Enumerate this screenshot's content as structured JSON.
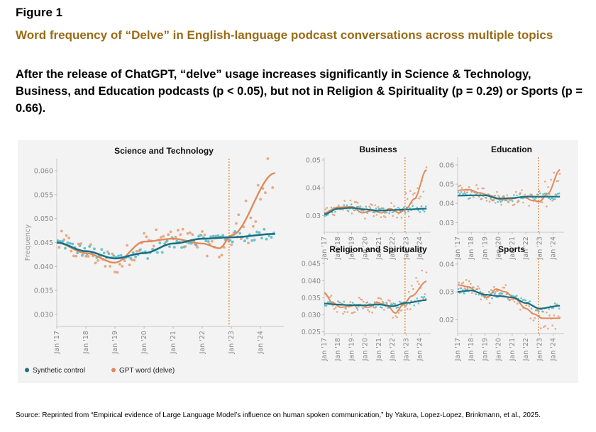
{
  "figure_label": "Figure 1",
  "title": "Word frequency of “Delve” in English-language podcast conversations across multiple topics",
  "subtitle": "After the release of ChatGPT, “delve” usage increases significantly in Science & Technology, Business, and Education podcasts (p < 0.05), but not in Religion & Spirituality (p = 0.29) or Sports (p = 0.66).",
  "source": "Source: Reprinted from “Empirical evidence of Large Language Model’s influence on human spoken communication,” by Yakura, Lopez-Lopez, Brinkmann, et al., 2025.",
  "colors": {
    "synthetic": "#1b6f80",
    "gpt": "#e08a5c",
    "synthetic_dot": "#4fb8c8",
    "gpt_dot": "#e59a70",
    "panel_bg": "#f3f3f3",
    "vline": "#e08a3c"
  },
  "chart_data": [
    {
      "type": "scatter",
      "title": "Science and Technology",
      "ylabel": "Frequency",
      "xlabel": "",
      "x_ticks": [
        "Jan '17",
        "Jan '18",
        "Jan '19",
        "Jan '20",
        "Jan '21",
        "Jan '22",
        "Jan '23",
        "Jan '24"
      ],
      "xlim": [
        2017,
        2024.8
      ],
      "ylim": [
        0.0275,
        0.0625
      ],
      "y_ticks": [
        0.03,
        0.035,
        0.04,
        0.045,
        0.05,
        0.055,
        0.06
      ],
      "y_tick_labels": [
        "0.030",
        "0.035",
        "0.040",
        "0.045",
        "0.050",
        "0.055",
        "0.060"
      ],
      "release_date": 2022.92,
      "series": [
        {
          "name": "Synthetic control",
          "x": [
            2017,
            2018,
            2019,
            2020,
            2021,
            2022,
            2023,
            2024.5
          ],
          "values": [
            0.045,
            0.0432,
            0.0417,
            0.0428,
            0.0448,
            0.0458,
            0.0461,
            0.0468
          ]
        },
        {
          "name": "GPT word (delve)",
          "x": [
            2017,
            2018,
            2019,
            2020,
            2021,
            2022,
            2022.6,
            2023,
            2024.5
          ],
          "values": [
            0.045,
            0.0428,
            0.0408,
            0.0452,
            0.0458,
            0.0448,
            0.0438,
            0.0465,
            0.0595
          ]
        }
      ],
      "legend": [
        "Synthetic control",
        "GPT word (delve)"
      ]
    },
    {
      "type": "scatter",
      "title": "Business",
      "x_ticks": [
        "Jan '17",
        "Jan '18",
        "Jan '19",
        "Jan '20",
        "Jan '21",
        "Jan '22",
        "Jan '23",
        "Jan '24"
      ],
      "xlim": [
        2017,
        2024.8
      ],
      "ylim": [
        0.024,
        0.051
      ],
      "y_ticks": [
        0.03,
        0.04,
        0.05
      ],
      "y_tick_labels": [
        "0.03",
        "0.04",
        "0.05"
      ],
      "release_date": 2022.92,
      "series": [
        {
          "name": "Synthetic control",
          "x": [
            2017,
            2018,
            2019,
            2020,
            2021,
            2022,
            2023,
            2024.5
          ],
          "values": [
            0.0305,
            0.0325,
            0.0328,
            0.0322,
            0.0318,
            0.032,
            0.0322,
            0.0325
          ]
        },
        {
          "name": "GPT word (delve)",
          "x": [
            2017,
            2018,
            2019,
            2019.8,
            2020.5,
            2021.2,
            2021.8,
            2022.5,
            2023,
            2023.6,
            2024.5
          ],
          "values": [
            0.031,
            0.033,
            0.0332,
            0.031,
            0.0318,
            0.031,
            0.0325,
            0.031,
            0.0325,
            0.036,
            0.0465
          ]
        }
      ]
    },
    {
      "type": "scatter",
      "title": "Education",
      "x_ticks": [
        "Jan '17",
        "Jan '18",
        "Jan '19",
        "Jan '20",
        "Jan '21",
        "Jan '22",
        "Jan '23",
        "Jan '24"
      ],
      "xlim": [
        2017,
        2024.8
      ],
      "ylim": [
        0.025,
        0.064
      ],
      "y_ticks": [
        0.03,
        0.04,
        0.05,
        0.06
      ],
      "y_tick_labels": [
        "0.03",
        "0.04",
        "0.05",
        "0.06"
      ],
      "release_date": 2022.92,
      "series": [
        {
          "name": "Synthetic control",
          "x": [
            2017,
            2018,
            2019,
            2020,
            2021,
            2022,
            2023,
            2024.5
          ],
          "values": [
            0.044,
            0.0442,
            0.0442,
            0.0425,
            0.0428,
            0.0435,
            0.0435,
            0.0435
          ]
        },
        {
          "name": "GPT word (delve)",
          "x": [
            2017,
            2017.8,
            2018.6,
            2019.4,
            2020.2,
            2021,
            2021.8,
            2022.5,
            2023,
            2023.6,
            2024.5
          ],
          "values": [
            0.0468,
            0.0472,
            0.0455,
            0.044,
            0.042,
            0.0425,
            0.0435,
            0.0415,
            0.041,
            0.045,
            0.0575
          ]
        }
      ]
    },
    {
      "type": "scatter",
      "title": "Religion and Spirituality",
      "x_ticks": [
        "Jan '17",
        "Jan '18",
        "Jan '19",
        "Jan '20",
        "Jan '21",
        "Jan '22",
        "Jan '23",
        "Jan '24"
      ],
      "xlim": [
        2017,
        2024.8
      ],
      "ylim": [
        0.0245,
        0.0465
      ],
      "y_ticks": [
        0.025,
        0.03,
        0.035,
        0.04,
        0.045
      ],
      "y_tick_labels": [
        "0.025",
        "0.030",
        "0.035",
        "0.040",
        "0.045"
      ],
      "release_date": 2022.92,
      "series": [
        {
          "name": "Synthetic control",
          "x": [
            2017,
            2018,
            2019,
            2020,
            2021,
            2022,
            2023,
            2024.5
          ],
          "values": [
            0.0333,
            0.033,
            0.0328,
            0.0328,
            0.033,
            0.0325,
            0.0335,
            0.0343
          ]
        },
        {
          "name": "GPT word (delve)",
          "x": [
            2017,
            2017.6,
            2018.2,
            2018.8,
            2019.5,
            2020.2,
            2020.9,
            2021.6,
            2022.2,
            2022.8,
            2023.4,
            2024.5
          ],
          "values": [
            0.0365,
            0.0335,
            0.0322,
            0.0325,
            0.033,
            0.0322,
            0.0335,
            0.0328,
            0.0305,
            0.033,
            0.0355,
            0.0398
          ]
        }
      ]
    },
    {
      "type": "scatter",
      "title": "Sports",
      "x_ticks": [
        "Jan '17",
        "Jan '18",
        "Jan '19",
        "Jan '20",
        "Jan '21",
        "Jan '22",
        "Jan '23",
        "Jan '24"
      ],
      "xlim": [
        2017,
        2024.8
      ],
      "ylim": [
        0.015,
        0.042
      ],
      "y_ticks": [
        0.02,
        0.03,
        0.04
      ],
      "y_tick_labels": [
        "0.02",
        "0.03",
        "0.04"
      ],
      "release_date": 2022.92,
      "series": [
        {
          "name": "Synthetic control",
          "x": [
            2017,
            2018,
            2019,
            2020,
            2021,
            2022,
            2023,
            2024.5
          ],
          "values": [
            0.03,
            0.0305,
            0.029,
            0.0285,
            0.028,
            0.026,
            0.024,
            0.025
          ]
        },
        {
          "name": "GPT word (delve)",
          "x": [
            2017,
            2017.8,
            2018.5,
            2019.2,
            2019.8,
            2020.5,
            2021.2,
            2022,
            2022.6,
            2023.2,
            2024.5
          ],
          "values": [
            0.0325,
            0.0318,
            0.0298,
            0.028,
            0.031,
            0.03,
            0.0275,
            0.024,
            0.022,
            0.0205,
            0.0205
          ]
        }
      ]
    }
  ]
}
